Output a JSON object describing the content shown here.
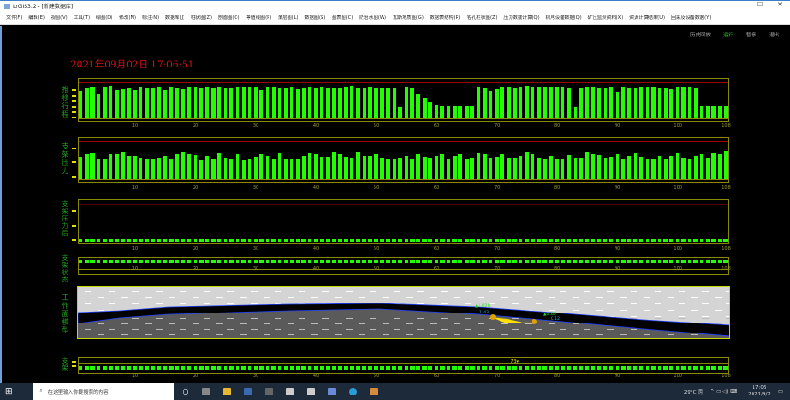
{
  "window": {
    "title": "LrGIS3.2 - [新建数据库]",
    "minimize": "—",
    "maximize": "☐",
    "close": "✕"
  },
  "menu": [
    "文件(F)",
    "编辑(E)",
    "视图(V)",
    "工具(T)",
    "绘图(D)",
    "修改(M)",
    "标注(N)",
    "数据库(J)",
    "柱状图(Z)",
    "剖面图(O)",
    "等值线图(P)",
    "煤层图(L)",
    "数据图(S)",
    "图表图(C)",
    "防治水图(W)",
    "瓦斯地质图(G)",
    "数据表结构(R)",
    "钻孔柱状图(Z)",
    "压力数据计算(Q)",
    "机电设备数据(Q)",
    "矿压监测资料(X)",
    "资源计算结果(U)",
    "回采及设备数据(Y)"
  ],
  "controls": {
    "history": "历史回放",
    "run": "运行",
    "pause": "暂停",
    "exit": "退出"
  },
  "clock": "2021年09月02日 17:06:51",
  "colors": {
    "bar": "#22ff00",
    "frame": "#8a8a00",
    "limit": "#a00000",
    "label": "#1ea01e",
    "clock": "#e01010",
    "vehicle": "#ffe000"
  },
  "panels": {
    "p1": {
      "label": "推移行程"
    },
    "p2": {
      "label": "支架压力"
    },
    "p3": {
      "label": "支架压力后"
    },
    "p4": {
      "label": "支架状态"
    },
    "p5": {
      "label": "工作面模型",
      "ann1": "▲1.026",
      "ann2": "▲0.60",
      "ann3": "1.43",
      "ann4": "0.12"
    },
    "p6": {
      "label": "支架",
      "marker": "73"
    }
  },
  "chart_data": [
    {
      "type": "bar",
      "name": "推移行程",
      "x_ticks": [
        10,
        20,
        30,
        40,
        50,
        60,
        70,
        80,
        90,
        100,
        108
      ],
      "ylim": [
        0,
        100
      ],
      "values": [
        78,
        88,
        90,
        70,
        92,
        95,
        82,
        84,
        88,
        82,
        92,
        86,
        86,
        90,
        82,
        89,
        88,
        84,
        92,
        92,
        88,
        90,
        86,
        90,
        86,
        88,
        92,
        92,
        92,
        92,
        82,
        90,
        90,
        86,
        88,
        92,
        84,
        86,
        92,
        86,
        90,
        86,
        88,
        86,
        90,
        95,
        86,
        88,
        92,
        86,
        88,
        88,
        86,
        35,
        92,
        88,
        70,
        58,
        48,
        40,
        36,
        36,
        38,
        38,
        38,
        36,
        92,
        86,
        80,
        84,
        92,
        90,
        88,
        92,
        94,
        92,
        92,
        92,
        92,
        90,
        92,
        86,
        35,
        88,
        90,
        90,
        86,
        88,
        90,
        76,
        91,
        88,
        88,
        90,
        90,
        92,
        88,
        86,
        84,
        90,
        92,
        92,
        88,
        36,
        36,
        36,
        38,
        36
      ]
    },
    {
      "type": "bar",
      "name": "支架压力",
      "x_ticks": [
        10,
        20,
        30,
        40,
        50,
        60,
        70,
        80,
        90,
        100,
        108
      ],
      "ylim": [
        0,
        100
      ],
      "values": [
        62,
        70,
        73,
        58,
        56,
        71,
        71,
        74,
        66,
        66,
        60,
        58,
        58,
        60,
        66,
        58,
        71,
        74,
        70,
        67,
        53,
        66,
        56,
        73,
        60,
        58,
        71,
        53,
        56,
        62,
        71,
        66,
        58,
        73,
        57,
        57,
        56,
        66,
        73,
        69,
        62,
        62,
        75,
        70,
        62,
        60,
        74,
        66,
        66,
        70,
        60,
        58,
        57,
        60,
        66,
        58,
        70,
        63,
        60,
        64,
        71,
        58,
        64,
        70,
        56,
        60,
        73,
        70,
        60,
        62,
        70,
        60,
        60,
        66,
        74,
        71,
        60,
        57,
        66,
        56,
        58,
        68,
        60,
        60,
        74,
        71,
        68,
        60,
        62,
        70,
        58,
        66,
        72,
        63,
        58,
        57,
        66,
        56,
        66,
        72,
        60,
        56,
        64,
        71,
        60,
        72,
        71,
        78
      ]
    },
    {
      "type": "table",
      "name": "支架压力后",
      "count": 108
    },
    {
      "type": "table",
      "name": "支架状态",
      "count": 108
    },
    {
      "type": "table",
      "name": "支架",
      "count": 108
    }
  ],
  "taskbar": {
    "search_placeholder": "在这里输入你要搜索的内容",
    "weather": "29°C 阴",
    "time": "17:06",
    "date": "2021/9/2"
  }
}
